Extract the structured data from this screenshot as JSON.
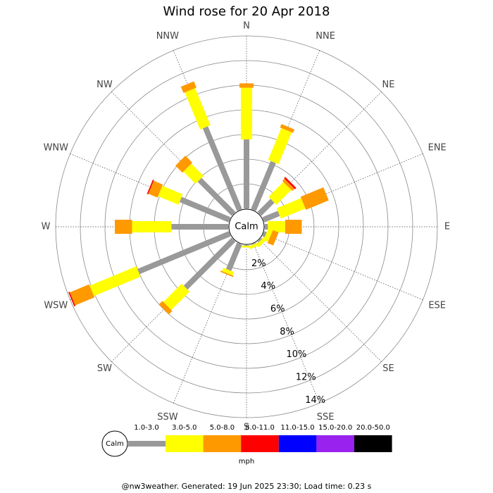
{
  "chart_data": {
    "type": "wind_rose",
    "title": "Wind rose for 20 Apr 2018",
    "calm_label": "Calm",
    "legend_title": "mph",
    "footer": "@nw3weather. Generated: 19 Jun 2025 23:30; Load time: 0.23 s",
    "categories": [
      "N",
      "NNE",
      "NE",
      "ENE",
      "E",
      "ESE",
      "SE",
      "SSE",
      "S",
      "SSW",
      "SW",
      "WSW",
      "W",
      "WNW",
      "NW",
      "NNW"
    ],
    "ylim": [
      0,
      14
    ],
    "yticks": [
      {
        "value": 2,
        "label": "2%"
      },
      {
        "value": 4,
        "label": "4%"
      },
      {
        "value": 6,
        "label": "6%"
      },
      {
        "value": 8,
        "label": "8%"
      },
      {
        "value": 10,
        "label": "10%"
      },
      {
        "value": 12,
        "label": "12%"
      },
      {
        "value": 14,
        "label": "14%"
      }
    ],
    "series": [
      {
        "name": "1.0-3.0",
        "color": "#999999",
        "values": [
          5.6,
          4.2,
          1.5,
          1.35,
          0.25,
          0.2,
          0.1,
          0.05,
          0.05,
          2.3,
          5.5,
          8.0,
          4.6,
          4.3,
          3.9,
          7.25
        ]
      },
      {
        "name": "3.0-5.0",
        "color": "#ffff00",
        "values": [
          4.2,
          2.8,
          1.7,
          2.15,
          1.4,
          0.4,
          0.3,
          0.25,
          0.15,
          0.3,
          2.1,
          4.1,
          3.2,
          1.8,
          1.4,
          3.25
        ]
      },
      {
        "name": "5.0-8.0",
        "color": "#ff9900",
        "values": [
          0.35,
          0.3,
          0.25,
          2.0,
          1.35,
          0.5,
          0,
          0,
          0,
          0.1,
          0.4,
          1.7,
          1.4,
          0.8,
          0.8,
          0.55
        ]
      },
      {
        "name": "8.0-11.0",
        "color": "#ff0000",
        "values": [
          0,
          0,
          0.15,
          0,
          0,
          0,
          0,
          0,
          0,
          0,
          0,
          0.1,
          0,
          0.1,
          0,
          0
        ]
      },
      {
        "name": "11.0-15.0",
        "color": "#0000ff",
        "values": [
          0,
          0,
          0,
          0,
          0,
          0,
          0,
          0,
          0,
          0,
          0,
          0,
          0,
          0,
          0,
          0
        ]
      },
      {
        "name": "15.0-20.0",
        "color": "#9922ee",
        "values": [
          0,
          0,
          0,
          0,
          0,
          0,
          0,
          0,
          0,
          0,
          0,
          0,
          0,
          0,
          0,
          0
        ]
      },
      {
        "name": "20.0-50.0",
        "color": "#000000",
        "values": [
          0,
          0,
          0,
          0,
          0,
          0,
          0,
          0,
          0,
          0,
          0,
          0,
          0,
          0,
          0,
          0
        ]
      }
    ]
  }
}
